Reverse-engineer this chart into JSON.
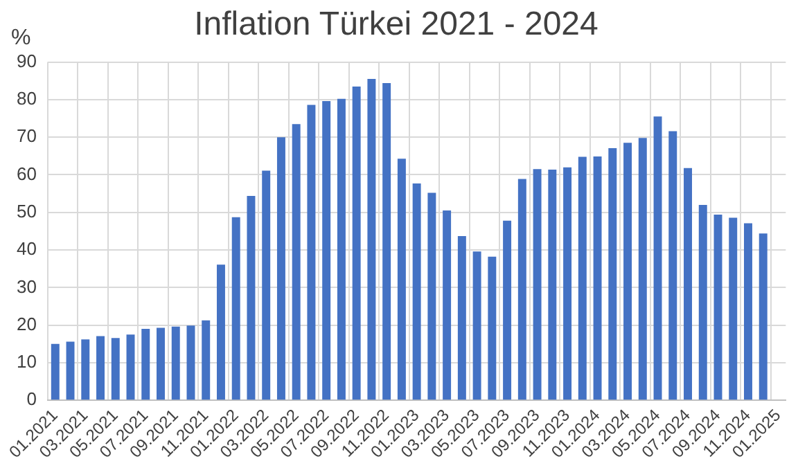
{
  "chart_data": {
    "type": "bar",
    "title": "Inflation Türkei 2021 - 2024",
    "ylabel": "%",
    "categories": [
      "01.2021",
      null,
      "03.2021",
      null,
      "05.2021",
      null,
      "07.2021",
      null,
      "09.2021",
      null,
      "11.2021",
      null,
      "01.2022",
      null,
      "03.2022",
      null,
      "05.2022",
      null,
      "07.2022",
      null,
      "09.2022",
      null,
      "11.2022",
      null,
      "01.2023",
      null,
      "03.2023",
      null,
      "05.2023",
      null,
      "07.2023",
      null,
      "09.2023",
      null,
      "11.2023",
      null,
      "01.2024",
      null,
      "03.2024",
      null,
      "05.2024",
      null,
      "07.2024",
      null,
      "09.2024",
      null,
      "11.2024",
      null,
      "01.2025"
    ],
    "values": [
      15.0,
      15.6,
      16.2,
      17.1,
      16.6,
      17.5,
      19.0,
      19.3,
      19.6,
      19.9,
      21.3,
      36.1,
      48.7,
      54.4,
      61.1,
      70.0,
      73.5,
      78.6,
      79.6,
      80.2,
      83.5,
      85.5,
      84.4,
      64.3,
      57.7,
      55.2,
      50.5,
      43.7,
      39.6,
      38.2,
      47.8,
      58.9,
      61.5,
      61.4,
      62.0,
      64.8,
      64.9,
      67.1,
      68.5,
      69.8,
      75.5,
      71.6,
      61.8,
      52.0,
      49.4,
      48.6,
      47.1,
      44.4,
      null
    ],
    "color": "#4472c4",
    "ylim": [
      0,
      90
    ],
    "yticks": [
      0,
      10,
      20,
      30,
      40,
      50,
      60,
      70,
      80,
      90
    ],
    "grid": true,
    "legend": false
  }
}
